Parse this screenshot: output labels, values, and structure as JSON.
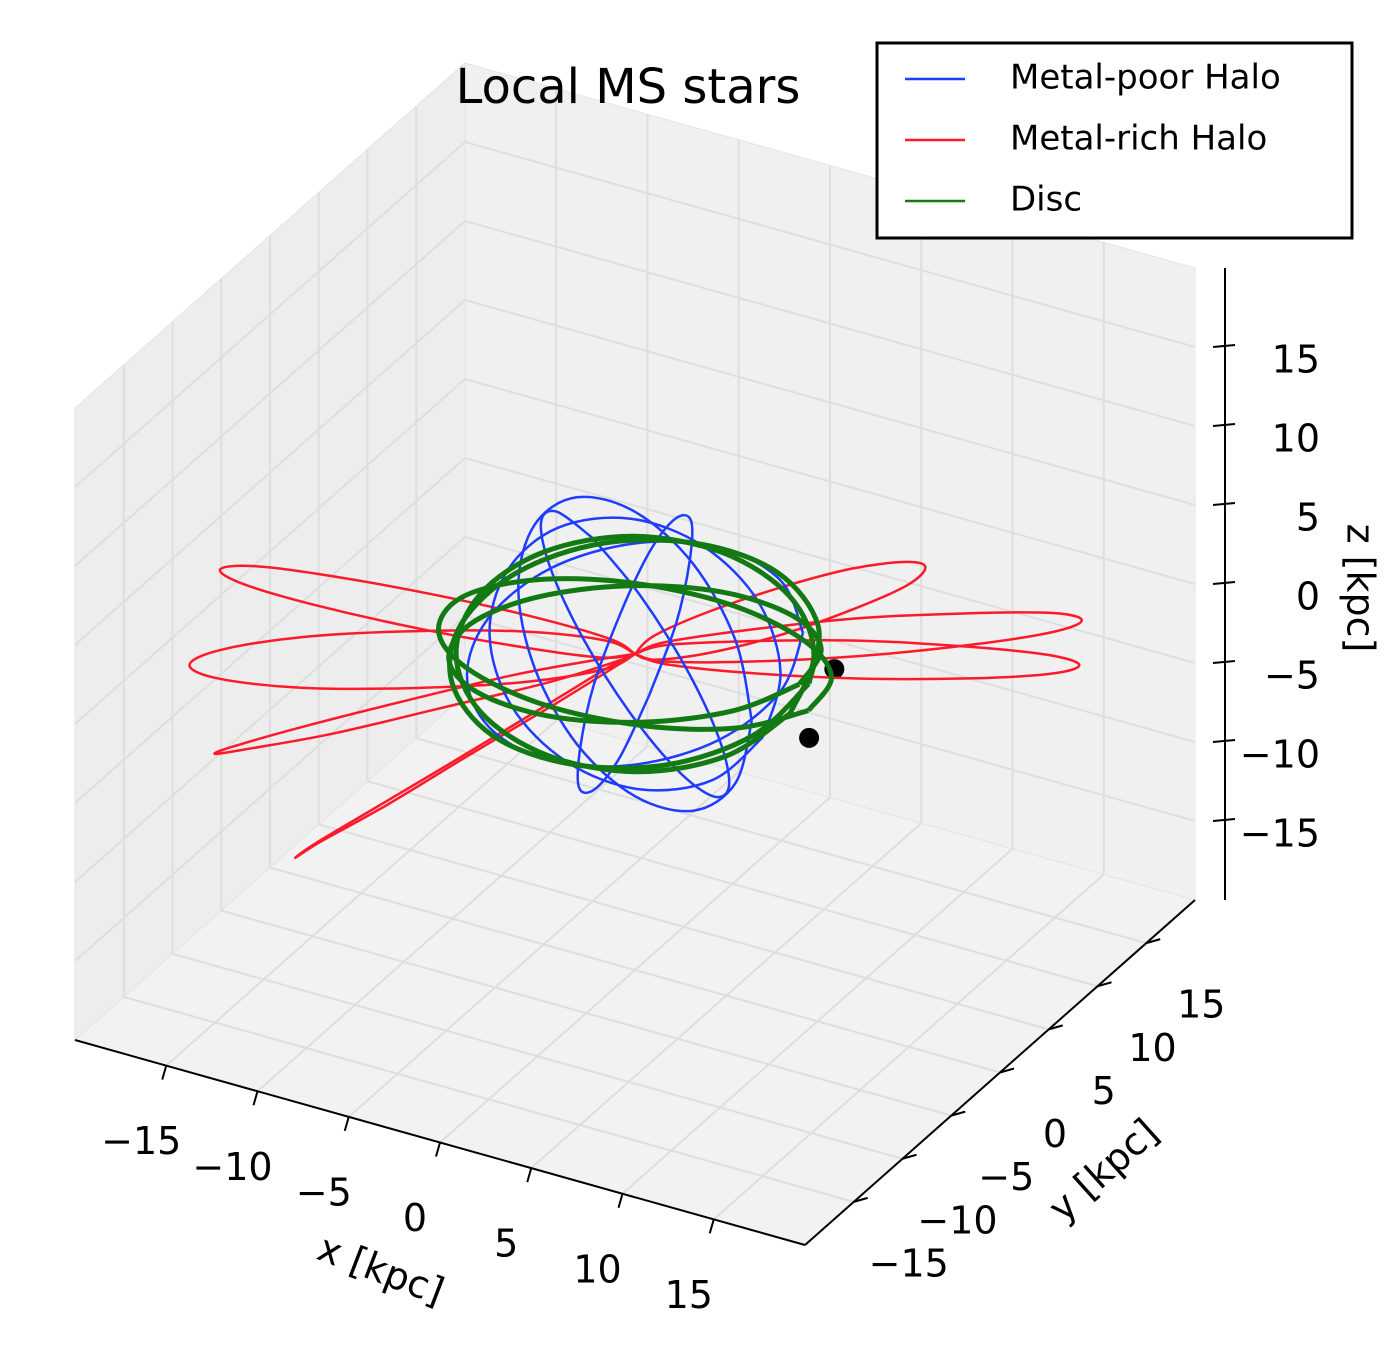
{
  "chart_data": {
    "type": "line3d",
    "title": "Local MS stars",
    "xlabel": "x [kpc]",
    "ylabel": "y [kpc]",
    "zlabel": "z [kpc]",
    "xlim": [
      -20,
      20
    ],
    "ylim": [
      -20,
      20
    ],
    "zlim": [
      -20,
      20
    ],
    "xticks": [
      {
        "value": -15,
        "label": "−15"
      },
      {
        "value": -10,
        "label": "−10"
      },
      {
        "value": -5,
        "label": "−5"
      },
      0,
      5,
      10,
      15
    ],
    "yticks": [
      {
        "value": -15,
        "label": "−15"
      },
      {
        "value": -10,
        "label": "−10"
      },
      {
        "value": -5,
        "label": "−5"
      },
      0,
      5,
      10,
      15
    ],
    "zticks": [
      {
        "value": -15,
        "label": "−15"
      },
      {
        "value": -10,
        "label": "−10"
      },
      {
        "value": -5,
        "label": "−5"
      },
      0,
      5,
      10,
      15
    ],
    "grid": true,
    "legend": "upper right",
    "markers": {
      "color": "#000000",
      "x": [
        9,
        9.7
      ],
      "y": [
        3.6,
        -0.3
      ],
      "z": [
        0,
        -2
      ]
    },
    "series": [
      {
        "name": "Metal-poor Halo",
        "color": "#1f3dff",
        "orbits": [
          {
            "x": [
              8,
              6.9,
              4,
              0,
              -4,
              -6.9,
              -8,
              -6.9,
              -4,
              0,
              4,
              6.9,
              8
            ],
            "y": [
              -3,
              -2.6,
              -1.5,
              0,
              1.5,
              2.6,
              3,
              2.6,
              1.5,
              0,
              -1.5,
              -2.6,
              -3
            ],
            "z": [
              0,
              4.5,
              7.8,
              9,
              7.8,
              4.5,
              0,
              -4.5,
              -7.8,
              -9,
              -7.8,
              -4.5,
              0
            ]
          },
          {
            "x": [
              6,
              5.2,
              3,
              0,
              -3,
              -5.2,
              -6,
              -5.2,
              -3,
              0,
              3,
              5.2,
              6
            ],
            "y": [
              6,
              5.2,
              3,
              0,
              -3,
              -5.2,
              -6,
              -5.2,
              -3,
              0,
              3,
              5.2,
              6
            ],
            "z": [
              0,
              3.5,
              6.1,
              7,
              6.1,
              3.5,
              0,
              -3.5,
              -6.1,
              -7,
              -6.1,
              -3.5,
              0
            ]
          },
          {
            "x": [
              -5,
              -2.8,
              0.1,
              3,
              5.1,
              5.8,
              5,
              2.8,
              -0.1,
              -3,
              -5.1,
              -5.8,
              -5
            ],
            "y": [
              5,
              5.8,
              5.1,
              3,
              0.1,
              -2.8,
              -5,
              -5.8,
              -5.1,
              -3,
              -0.1,
              2.8,
              5
            ],
            "z": [
              3,
              -0.4,
              -3.7,
              -6,
              -6.7,
              -5.6,
              -3,
              0.4,
              3.7,
              6,
              6.7,
              5.6,
              3
            ]
          },
          {
            "x": [
              7,
              6.1,
              3.5,
              0,
              -3.5,
              -6.1,
              -7,
              -6.1,
              -3.5,
              0,
              3.5,
              6.1,
              7
            ],
            "y": [
              0,
              3.5,
              6.1,
              7,
              6.1,
              3.5,
              0,
              -3.5,
              -6.1,
              -7,
              -6.1,
              -3.5,
              0
            ],
            "z": [
              -3,
              -1.1,
              1.1,
              3,
              4.1,
              4.1,
              3,
              1.1,
              -1.1,
              -3,
              -4.1,
              -4.1,
              -3
            ]
          },
          {
            "x": [
              4,
              4.5,
              3.7,
              2,
              -0.3,
              -2.5,
              -4,
              -4.5,
              -3.7,
              -2,
              0.3,
              2.5,
              4
            ],
            "y": [
              -6,
              -4.2,
              -1.3,
              2,
              4.7,
              6.2,
              6,
              4.2,
              1.3,
              -2,
              -4.7,
              -6.2,
              -6
            ],
            "z": [
              2,
              5.7,
              7.9,
              8,
              5.9,
              2.3,
              -2,
              -5.7,
              -7.9,
              -8,
              -5.9,
              -2.3,
              2
            ]
          }
        ]
      },
      {
        "name": "Metal-rich Halo",
        "color": "#ff1a2a",
        "orbits": [
          {
            "x": [
              0,
              -1.2,
              -4.5,
              -9,
              -13.5,
              -16.8,
              -18,
              -16.8,
              -13.5,
              -9,
              -4.5,
              -1.2,
              0
            ],
            "y": [
              0,
              -0.8,
              -3,
              -6,
              -9,
              -11.2,
              -12,
              -11.2,
              -9,
              -6,
              -3,
              -0.8,
              0
            ],
            "z": [
              0,
              0.9,
              1.6,
              1.8,
              1.6,
              0.9,
              0,
              -0.9,
              -1.6,
              -1.8,
              -1.6,
              -0.9,
              0
            ]
          },
          {
            "x": [
              0,
              -1.3,
              -4.8,
              -9.5,
              -14.3,
              -17.7,
              -19,
              -17.7,
              -14.3,
              -9.5,
              -4.8,
              -1.3,
              0
            ],
            "y": [
              0,
              0.0,
              -0.9,
              -2.5,
              -4.4,
              -6.0,
              -7,
              -7.0,
              -6.1,
              -4.5,
              -2.6,
              -1.0,
              0
            ],
            "z": [
              0,
              0.5,
              1.2,
              2.0,
              2.7,
              3.1,
              3,
              2.5,
              1.8,
              1.0,
              0.3,
              -0.1,
              0
            ]
          },
          {
            "x": [
              0,
              0.0,
              -2.0,
              -5.5,
              -9.5,
              -13.0,
              -15,
              -15.0,
              -13.0,
              -9.5,
              -5.5,
              -2.0,
              0
            ],
            "y": [
              0,
              -2.0,
              -5.5,
              -9.5,
              -13.0,
              -15.0,
              -15,
              -13.0,
              -9.5,
              -5.5,
              -2.0,
              0.0,
              0
            ],
            "z": [
              0,
              0.6,
              0.5,
              0,
              -1.0,
              -2.0,
              -3,
              -3.6,
              -3.6,
              -3.0,
              -2.0,
              -1.0,
              0
            ]
          },
          {
            "x": [
              0,
              -0.4,
              -1.8,
              -4.0,
              -6.3,
              -8.2,
              -9,
              -8.7,
              -7.2,
              -5.0,
              -2.7,
              -0.9,
              0
            ],
            "y": [
              0,
              -1.5,
              -4.9,
              -9.5,
              -13.9,
              -17.0,
              -18,
              -16.5,
              -13.1,
              -8.5,
              -4.1,
              -0.9,
              0
            ],
            "z": [
              0,
              -0.2,
              -1.1,
              -2.5,
              -4.1,
              -5.3,
              -6,
              -5.8,
              -4.9,
              -3.5,
              -1.9,
              -0.6,
              0
            ]
          },
          {
            "x": [
              0,
              1.1,
              4.3,
              8.5,
              12.8,
              15.9,
              17,
              15.9,
              12.8,
              8.5,
              4.3,
              1.1,
              0
            ],
            "y": [
              0,
              0.9,
              3.5,
              7,
              10.5,
              13.1,
              14,
              13.1,
              10.5,
              7,
              3.5,
              0.9,
              0
            ],
            "z": [
              0,
              0.6,
              1.0,
              1.2,
              1.0,
              0.6,
              0,
              -0.6,
              -1.0,
              -1.2,
              -1.0,
              -0.6,
              0
            ]
          },
          {
            "x": [
              0,
              1.3,
              4.8,
              9.5,
              14.3,
              17.7,
              19,
              17.7,
              14.3,
              9.5,
              4.8,
              1.3,
              0
            ],
            "y": [
              0,
              0.7,
              2.5,
              5,
              7.5,
              9.3,
              10,
              9.3,
              7.5,
              5,
              2.5,
              0.7,
              0
            ],
            "z": [
              0,
              0.6,
              1.0,
              1.2,
              1.0,
              0.6,
              0,
              -0.6,
              -1.0,
              -1.2,
              -1.0,
              -0.6,
              0
            ]
          },
          {
            "x": [
              0,
              0.6,
              2.4,
              4.8,
              7.1,
              8.9,
              9.5,
              8.9,
              7.1,
              4.8,
              2.4,
              0.6,
              0
            ],
            "y": [
              0,
              0.8,
              3,
              6,
              9,
              11.2,
              12,
              11.2,
              9,
              6,
              3,
              0.8,
              0
            ],
            "z": [
              0,
              0.9,
              1.8,
              2.5,
              2.8,
              2.6,
              2,
              1.1,
              0.2,
              -0.5,
              -0.8,
              -0.6,
              0
            ]
          }
        ]
      },
      {
        "name": "Disc",
        "color": "#137a13",
        "orbits": [
          {
            "x": [
              9,
              7.8,
              4.5,
              0,
              -4.5,
              -7.8,
              -9,
              -7.8,
              -4.5,
              0,
              4.5,
              7.8,
              9
            ],
            "y": [
              0,
              4.5,
              7.8,
              9,
              7.8,
              4.5,
              0,
              -4.5,
              -7.8,
              -9,
              -7.8,
              -4.5,
              0
            ],
            "z": [
              1,
              0.4,
              -0.4,
              -1,
              -1.4,
              -1.4,
              -1,
              -0.4,
              0.4,
              1,
              1.4,
              1.4,
              1
            ]
          },
          {
            "x": [
              8.5,
              7.4,
              4.3,
              0,
              -4.3,
              -7.4,
              -8.5,
              -7.4,
              -4.3,
              0,
              4.3,
              7.4,
              8.5
            ],
            "y": [
              0,
              4.5,
              7.8,
              9,
              7.8,
              4.5,
              0,
              -4.5,
              -7.8,
              -9,
              -7.8,
              -4.5,
              0
            ],
            "z": [
              -1,
              -0.1,
              0.8,
              1.5,
              1.8,
              1.6,
              1,
              0.1,
              -0.8,
              -1.5,
              -1.8,
              -1.6,
              -1
            ]
          },
          {
            "x": [
              9,
              7.3,
              3.6,
              -1,
              -5.4,
              -8.3,
              -9,
              -7.3,
              -3.6,
              1,
              5.4,
              8.3,
              9
            ],
            "y": [
              1,
              5.1,
              7.9,
              8.5,
              6.9,
              3.4,
              -1,
              -5.1,
              -7.9,
              -8.5,
              -6.9,
              -3.4,
              1
            ],
            "z": [
              0.5,
              1.4,
              2.0,
              2,
              1.5,
              0.6,
              -0.5,
              -1.4,
              -2.0,
              -2,
              -1.5,
              -0.6,
              0.5
            ]
          },
          {
            "x": [
              9.5,
              8.2,
              4.8,
              0,
              -4.8,
              -8.2,
              -9.5,
              -8.2,
              -4.8,
              0,
              4.8,
              8.2,
              9.5
            ],
            "y": [
              0,
              4.8,
              8.2,
              9.5,
              8.2,
              4.8,
              0,
              -4.8,
              -8.2,
              -9.5,
              -8.2,
              -4.8,
              0
            ],
            "z": [
              -0.5,
              -1.4,
              -2.0,
              -2,
              -1.5,
              -0.6,
              0.5,
              1.4,
              2.0,
              2,
              1.5,
              0.6,
              -0.5
            ]
          }
        ]
      }
    ]
  }
}
